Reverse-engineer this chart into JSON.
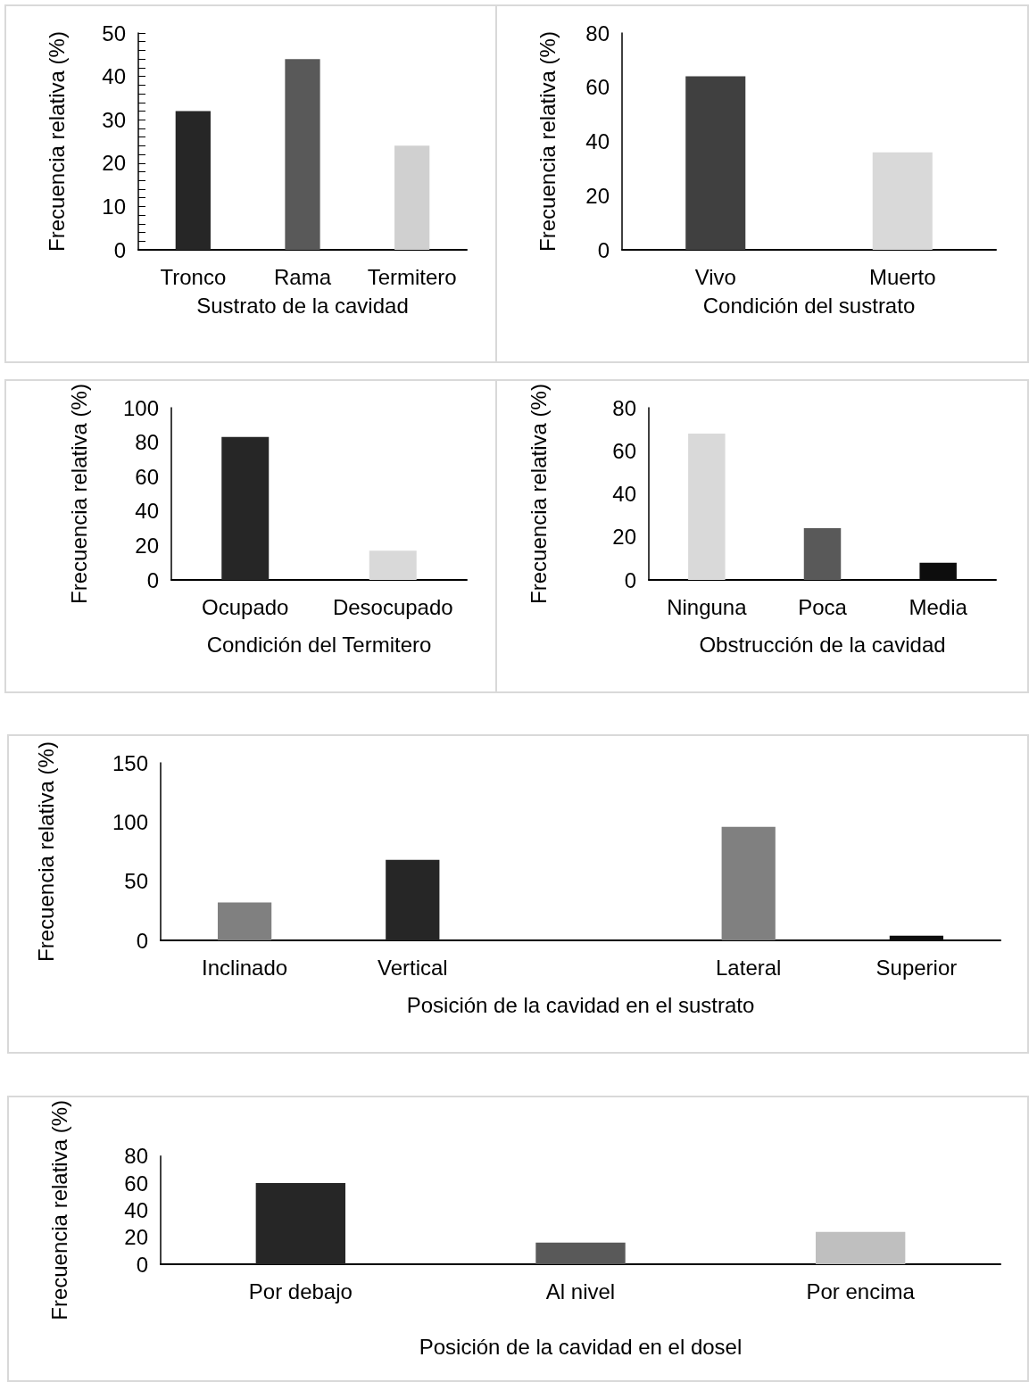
{
  "chart_data": [
    {
      "type": "bar",
      "xlabel": "Sustrato de la cavidad",
      "ylabel": "Frecuencia relativa (%)",
      "categories": [
        "Tronco",
        "Rama",
        "Termitero"
      ],
      "values": [
        32,
        44,
        24
      ],
      "colors": [
        "#262626",
        "#595959",
        "#d0d0d0"
      ],
      "ylim": [
        0,
        50
      ],
      "yticks": [
        0,
        {
          "value": 2,
          "label": null
        },
        {
          "value": 4,
          "label": null
        },
        {
          "value": 6,
          "label": null
        },
        {
          "value": 8,
          "label": null
        },
        10,
        {
          "value": 12,
          "label": null
        },
        {
          "value": 14,
          "label": null
        },
        {
          "value": 16,
          "label": null
        },
        {
          "value": 18,
          "label": null
        },
        20,
        {
          "value": 22,
          "label": null
        },
        {
          "value": 24,
          "label": null
        },
        {
          "value": 26,
          "label": null
        },
        {
          "value": 28,
          "label": null
        },
        30,
        {
          "value": 32,
          "label": null
        },
        {
          "value": 34,
          "label": null
        },
        {
          "value": 36,
          "label": null
        },
        {
          "value": 38,
          "label": null
        },
        40,
        {
          "value": 42,
          "label": null
        },
        {
          "value": 44,
          "label": null
        },
        {
          "value": 46,
          "label": null
        },
        {
          "value": 48,
          "label": null
        },
        50
      ]
    },
    {
      "type": "bar",
      "xlabel": "Condición del sustrato",
      "ylabel": "Frecuencia relativa (%)",
      "categories": [
        "Vivo",
        "Muerto"
      ],
      "values": [
        64,
        36
      ],
      "colors": [
        "#404040",
        "#d9d9d9"
      ],
      "ylim": [
        0,
        80
      ],
      "yticks": [
        0,
        20,
        40,
        60,
        80
      ]
    },
    {
      "type": "bar",
      "xlabel": "Condición del Termitero",
      "ylabel": "Frecuencia relativa (%)",
      "categories": [
        "Ocupado",
        "Desocupado"
      ],
      "values": [
        83,
        17
      ],
      "colors": [
        "#262626",
        "#d9d9d9"
      ],
      "ylim": [
        0,
        100
      ],
      "yticks": [
        0,
        20,
        40,
        60,
        80,
        100
      ]
    },
    {
      "type": "bar",
      "xlabel": "Obstrucción de la cavidad",
      "ylabel": "Frecuencia relativa (%)",
      "categories": [
        "Ninguna",
        "Poca",
        "Media"
      ],
      "values": [
        68,
        24,
        8
      ],
      "colors": [
        "#d9d9d9",
        "#595959",
        "#0d0d0d"
      ],
      "ylim": [
        0,
        80
      ],
      "yticks": [
        0,
        20,
        40,
        60,
        80
      ]
    },
    {
      "type": "bar",
      "xlabel": "Posición de la cavidad en el sustrato",
      "ylabel": "Frecuencia relativa (%)",
      "categories": [
        "Inclinado",
        "Vertical",
        null,
        "Lateral",
        "Superior"
      ],
      "values": [
        32,
        68,
        null,
        96,
        4
      ],
      "colors": [
        "#808080",
        "#262626",
        null,
        "#808080",
        "#0d0d0d"
      ],
      "ylim": [
        0,
        150
      ],
      "yticks": [
        0,
        50,
        100,
        150
      ]
    },
    {
      "type": "bar",
      "xlabel": "Posición de la cavidad en el dosel",
      "ylabel": "Frecuencia relativa (%)",
      "categories": [
        "Por debajo",
        "Al nivel",
        "Por encima"
      ],
      "values": [
        60,
        16,
        24
      ],
      "colors": [
        "#262626",
        "#595959",
        "#bfbfbf"
      ],
      "ylim": [
        0,
        80
      ],
      "yticks": [
        0,
        20,
        40,
        60,
        80
      ]
    }
  ]
}
